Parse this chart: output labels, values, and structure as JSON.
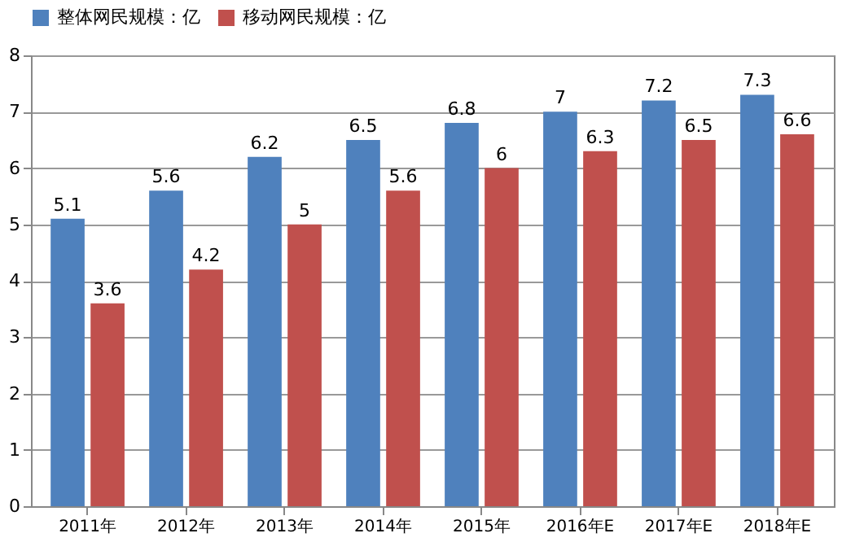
{
  "chart_data": {
    "type": "bar",
    "categories": [
      "2011年",
      "2012年",
      "2013年",
      "2014年",
      "2015年",
      "2016年E",
      "2017年E",
      "2018年E"
    ],
    "series": [
      {
        "name": "整体网民规模：亿",
        "color": "#4f81bd",
        "values": [
          5.1,
          5.6,
          6.2,
          6.5,
          6.8,
          7,
          7.2,
          7.3
        ]
      },
      {
        "name": "移动网民规模：亿",
        "color": "#c0504d",
        "values": [
          3.6,
          4.2,
          5,
          5.6,
          6,
          6.3,
          6.5,
          6.6
        ]
      }
    ],
    "ylim": [
      0,
      8
    ],
    "yticks": [
      0,
      1,
      2,
      3,
      4,
      5,
      6,
      7,
      8
    ],
    "grid": "y",
    "legend": "top",
    "data_labels": true
  }
}
